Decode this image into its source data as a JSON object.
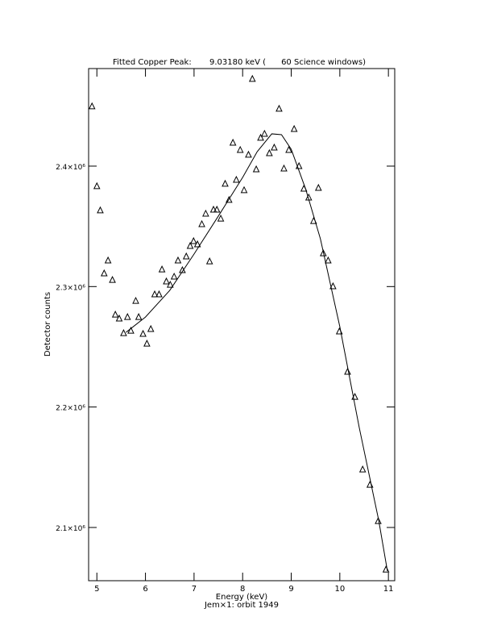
{
  "chart_data": {
    "type": "scatter",
    "title": "Fitted Copper Peak:       9.03180 keV (      60 Science windows)",
    "x_label": "Energy (keV)",
    "subtitle": "Jem×1: orbit 1949",
    "y_label": "Detector counts",
    "xlim": [
      4.83,
      11.13
    ],
    "ylim": [
      2055800,
      2481000
    ],
    "xticks": [
      5,
      6,
      7,
      8,
      9,
      10,
      11
    ],
    "yticks": [
      {
        "value": 2100000,
        "label": "2.1×10⁶"
      },
      {
        "value": 2200000,
        "label": "2.2×10⁶"
      },
      {
        "value": 2300000,
        "label": "2.3×10⁶"
      },
      {
        "value": 2400000,
        "label": "2.4×10⁶"
      }
    ],
    "grid": false,
    "color": "#000000",
    "series": [
      {
        "type": "scatter",
        "marker": "triangle",
        "x": [
          4.9,
          5.0,
          5.07,
          5.15,
          5.23,
          5.32,
          5.38,
          5.46,
          5.55,
          5.63,
          5.7,
          5.8,
          5.86,
          5.95,
          6.03,
          6.11,
          6.19,
          6.28,
          6.34,
          6.43,
          6.51,
          6.59,
          6.67,
          6.76,
          6.84,
          6.92,
          6.99,
          7.07,
          7.16,
          7.24,
          7.32,
          7.4,
          7.47,
          7.55,
          7.64,
          7.72,
          7.8,
          7.87,
          7.95,
          8.03,
          8.12,
          8.2,
          8.28,
          8.37,
          8.45,
          8.55,
          8.65,
          8.75,
          8.85,
          8.95,
          9.06,
          9.16,
          9.26,
          9.36,
          9.46,
          9.56,
          9.66,
          9.76,
          9.86,
          9.99,
          10.16,
          10.31,
          10.47,
          10.62,
          10.79,
          10.95
        ],
        "values": [
          2449600,
          2383300,
          2363200,
          2310900,
          2321600,
          2305500,
          2276700,
          2273400,
          2261300,
          2274700,
          2263300,
          2288100,
          2274700,
          2260700,
          2252600,
          2264700,
          2293500,
          2293500,
          2314200,
          2304200,
          2301500,
          2308200,
          2321600,
          2313600,
          2325000,
          2333700,
          2337700,
          2335000,
          2351800,
          2360500,
          2320900,
          2363800,
          2363800,
          2356400,
          2385300,
          2371900,
          2419400,
          2388600,
          2413400,
          2380000,
          2409400,
          2472400,
          2397300,
          2423500,
          2426800,
          2410700,
          2415400,
          2447600,
          2398000,
          2413400,
          2430800,
          2400000,
          2381200,
          2373900,
          2354400,
          2381900,
          2327600,
          2321600,
          2300200,
          2262700,
          2229200,
          2208400,
          2148100,
          2135400,
          2105300,
          2065000
        ]
      },
      {
        "type": "line",
        "x": [
          5.6,
          6.0,
          6.5,
          7.0,
          7.5,
          8.0,
          8.3,
          8.6,
          8.8,
          9.0,
          9.3,
          9.6,
          10.0,
          10.4,
          10.8,
          10.98
        ],
        "values": [
          2262000,
          2274700,
          2296800,
          2327000,
          2358500,
          2390600,
          2412000,
          2426800,
          2426100,
          2414000,
          2380600,
          2339700,
          2266700,
          2182900,
          2106000,
          2063700
        ]
      }
    ]
  }
}
